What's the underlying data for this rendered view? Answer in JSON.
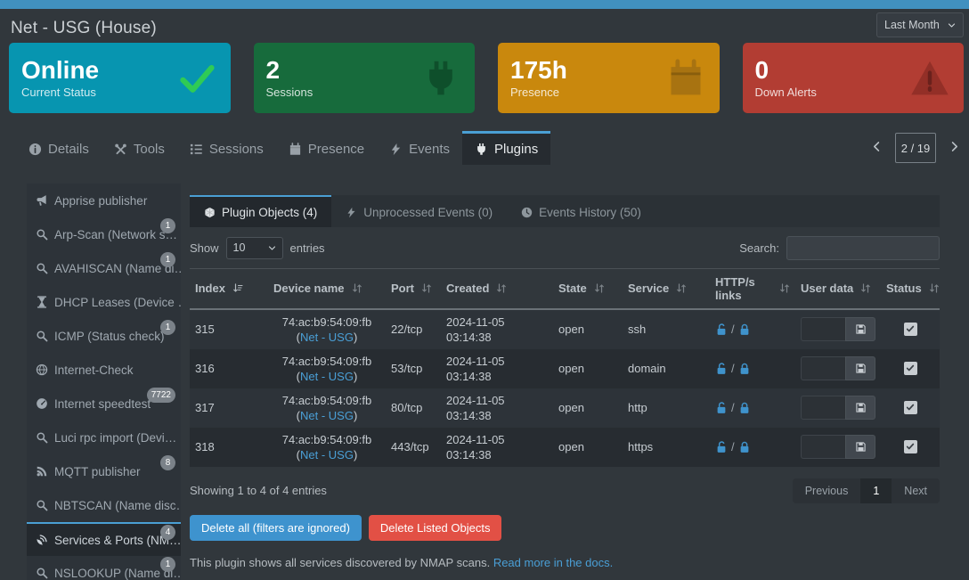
{
  "header": {
    "title": "Net - USG (House)",
    "period_selector": "Last Month"
  },
  "cards": [
    {
      "value": "Online",
      "label": "Current Status",
      "icon": "check-icon",
      "bg": "#0795b0",
      "icon_color": "#2fcb55"
    },
    {
      "value": "2",
      "label": "Sessions",
      "icon": "plug-icon",
      "bg": "#176b3c",
      "icon_color": "#0e4f2b"
    },
    {
      "value": "175h",
      "label": "Presence",
      "icon": "calendar-icon",
      "bg": "#c9880d",
      "icon_color": "#a87311"
    },
    {
      "value": "0",
      "label": "Down Alerts",
      "icon": "warning-icon",
      "bg": "#b23d33",
      "icon_color": "#932f27"
    }
  ],
  "tabs": [
    {
      "label": "Details",
      "icon": "info-icon",
      "active": false
    },
    {
      "label": "Tools",
      "icon": "tools-icon",
      "active": false
    },
    {
      "label": "Sessions",
      "icon": "list-icon",
      "active": false
    },
    {
      "label": "Presence",
      "icon": "calendar-icon",
      "active": false
    },
    {
      "label": "Events",
      "icon": "lightning-icon",
      "active": false
    },
    {
      "label": "Plugins",
      "icon": "plug-icon",
      "active": true
    }
  ],
  "pager": {
    "current": "2 / 19"
  },
  "sidebar": {
    "items": [
      {
        "label": "Apprise publisher",
        "icon": "megaphone-icon",
        "badge": "",
        "active": false
      },
      {
        "label": "Arp-Scan (Network s…",
        "icon": "search-icon",
        "badge": "1",
        "active": false
      },
      {
        "label": "AVAHISCAN (Name di…",
        "icon": "search-icon",
        "badge": "1",
        "active": false
      },
      {
        "label": "DHCP Leases (Device …",
        "icon": "hourglass-icon",
        "badge": "",
        "active": false
      },
      {
        "label": "ICMP (Status check)",
        "icon": "search-icon",
        "badge": "1",
        "active": false
      },
      {
        "label": "Internet-Check",
        "icon": "globe-icon",
        "badge": "",
        "active": false
      },
      {
        "label": "Internet speedtest",
        "icon": "speedometer-icon",
        "badge": "7722",
        "active": false
      },
      {
        "label": "Luci rpc import (Devi…",
        "icon": "search-icon",
        "badge": "",
        "active": false
      },
      {
        "label": "MQTT publisher",
        "icon": "rss-icon",
        "badge": "8",
        "active": false
      },
      {
        "label": "NBTSCAN (Name disc…",
        "icon": "search-icon",
        "badge": "",
        "active": false
      },
      {
        "label": "Services & Ports (NM…",
        "icon": "satellite-icon",
        "badge": "4",
        "active": true
      },
      {
        "label": "NSLOOKUP (Name di…",
        "icon": "search-icon",
        "badge": "1",
        "active": false
      }
    ]
  },
  "plugin_tabs": [
    {
      "label": "Plugin Objects (4)",
      "icon": "cube-icon",
      "active": true
    },
    {
      "label": "Unprocessed Events (0)",
      "icon": "lightning-icon",
      "active": false
    },
    {
      "label": "Events History (50)",
      "icon": "clock-icon",
      "active": false
    }
  ],
  "table_controls": {
    "show_label": "Show",
    "entries_value": "10",
    "entries_suffix": "entries",
    "search_label": "Search:",
    "search_value": ""
  },
  "table": {
    "columns": [
      "Index",
      "Device name",
      "Port",
      "Created",
      "State",
      "Service",
      "HTTP/s links",
      "User data",
      "Status"
    ],
    "link_paren_open": "(",
    "link_paren_close": ")",
    "lock_separator": "/",
    "rows": [
      {
        "index": "315",
        "device": "74:ac:b9:54:09:fb",
        "device_link": "Net - USG",
        "port": "22/tcp",
        "created_date": "2024-11-05",
        "created_time": "03:14:38",
        "state": "open",
        "service": "ssh",
        "user_data": "",
        "status_checked": true
      },
      {
        "index": "316",
        "device": "74:ac:b9:54:09:fb",
        "device_link": "Net - USG",
        "port": "53/tcp",
        "created_date": "2024-11-05",
        "created_time": "03:14:38",
        "state": "open",
        "service": "domain",
        "user_data": "",
        "status_checked": true
      },
      {
        "index": "317",
        "device": "74:ac:b9:54:09:fb",
        "device_link": "Net - USG",
        "port": "80/tcp",
        "created_date": "2024-11-05",
        "created_time": "03:14:38",
        "state": "open",
        "service": "http",
        "user_data": "",
        "status_checked": true
      },
      {
        "index": "318",
        "device": "74:ac:b9:54:09:fb",
        "device_link": "Net - USG",
        "port": "443/tcp",
        "created_date": "2024-11-05",
        "created_time": "03:14:38",
        "state": "open",
        "service": "https",
        "user_data": "",
        "status_checked": true
      }
    ]
  },
  "table_footer": {
    "showing_text": "Showing 1 to 4 of 4 entries",
    "pagination": {
      "previous": "Previous",
      "page": "1",
      "next": "Next"
    }
  },
  "actions": {
    "delete_all": "Delete all (filters are ignored)",
    "delete_listed": "Delete Listed Objects"
  },
  "footer_note": {
    "text": "This plugin shows all services discovered by NMAP scans.",
    "link": "Read more in the docs."
  }
}
